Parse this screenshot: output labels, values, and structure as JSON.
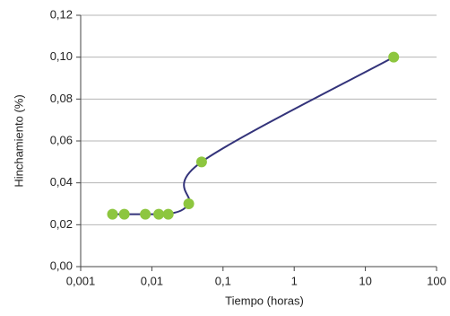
{
  "chart_data": {
    "type": "scatter",
    "x_label": "Tiempo (horas)",
    "y_label": "Hinchamiento (%)",
    "x_log": true,
    "grid": true,
    "xlim": [
      0.001,
      100
    ],
    "ylim": [
      0,
      0.12
    ],
    "xticks": [
      {
        "value": 0.001,
        "label": "0,001"
      },
      {
        "value": 0.01,
        "label": "0,01"
      },
      {
        "value": 0.1,
        "label": "0,1"
      },
      1,
      10,
      100
    ],
    "yticks": [
      {
        "value": 0,
        "label": "0,00"
      },
      {
        "value": 0.02,
        "label": "0,02"
      },
      {
        "value": 0.04,
        "label": "0,04"
      },
      {
        "value": 0.06,
        "label": "0,06"
      },
      {
        "value": 0.08,
        "label": "0,08"
      },
      {
        "value": 0.1,
        "label": "0,10"
      },
      {
        "value": 0.12,
        "label": "0,12"
      }
    ],
    "series": [
      {
        "marker_color": "#8dc63f",
        "line_color": "#33337a",
        "x": [
          0.0028,
          0.0041,
          0.0081,
          0.0125,
          0.017,
          0.033,
          0.05,
          25
        ],
        "values": [
          0.025,
          0.025,
          0.025,
          0.025,
          0.025,
          0.03,
          0.05,
          0.1
        ]
      }
    ]
  }
}
